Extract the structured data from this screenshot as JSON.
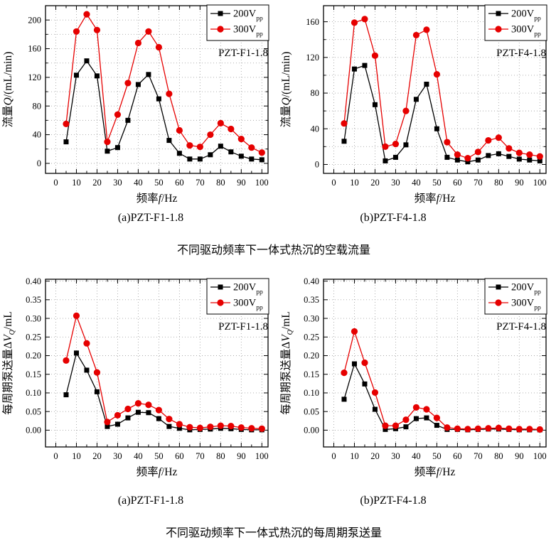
{
  "page": {
    "background": "#ffffff"
  },
  "colors": {
    "series_200v": "#000000",
    "series_300v": "#e60000",
    "grid": "#a6a6a6",
    "axis": "#000000",
    "legend_bg": "#ffffff"
  },
  "captions": {
    "flow_a": "(a)PZT-F1-1.8",
    "flow_b": "(b)PZT-F4-1.8",
    "flow_title": "不同驱动频率下一体式热沉的空载流量",
    "pump_a": "(a)PZT-F1-1.8",
    "pump_b": "(b)PZT-F4-1.8",
    "pump_title": "不同驱动频率下一体式热沉的每周期泵送量"
  },
  "chart_data": [
    {
      "type": "line",
      "annotation": "PZT-F1-1.8",
      "xlabel": "频率f/Hz",
      "ylabel": "流量Q/(mL/min)",
      "xlabel_parts": [
        {
          "t": "频率"
        },
        {
          "t": "f",
          "i": true
        },
        {
          "t": "/Hz"
        }
      ],
      "ylabel_parts": [
        {
          "t": "流量"
        },
        {
          "t": "Q",
          "i": true
        },
        {
          "t": "/(mL/min)"
        }
      ],
      "x": [
        5,
        10,
        15,
        20,
        25,
        30,
        35,
        40,
        45,
        50,
        55,
        60,
        65,
        70,
        75,
        80,
        85,
        90,
        95,
        100
      ],
      "series": [
        {
          "name": "200Vpp",
          "legend_main": "200V",
          "legend_sub": "pp",
          "color": "#000000",
          "marker": "square",
          "values": [
            30,
            123,
            143,
            122,
            17,
            22,
            60,
            110,
            124,
            90,
            32,
            14,
            6,
            6,
            12,
            24,
            16,
            10,
            6,
            5
          ]
        },
        {
          "name": "300Vpp",
          "legend_main": "300V",
          "legend_sub": "pp",
          "color": "#e60000",
          "marker": "circle",
          "values": [
            55,
            184,
            208,
            186,
            30,
            68,
            112,
            168,
            184,
            162,
            97,
            46,
            25,
            23,
            40,
            56,
            48,
            34,
            22,
            15
          ]
        }
      ],
      "xlim": [
        -5,
        103
      ],
      "ylim": [
        -14,
        220
      ],
      "xticks": [
        0,
        10,
        20,
        30,
        40,
        50,
        60,
        70,
        80,
        90,
        100
      ],
      "xminor_step": 5,
      "yticks": [
        0,
        40,
        80,
        120,
        160,
        200
      ],
      "ytick_labels": [
        "0",
        "40",
        "80",
        "120",
        "160",
        "200"
      ],
      "ygrid_step": 20,
      "yminor_step": 20,
      "grid": true,
      "legend_position": "top-right"
    },
    {
      "type": "line",
      "annotation": "PZT-F4-1.8",
      "xlabel": "频率f/Hz",
      "ylabel": "流量Q/(mL/min)",
      "xlabel_parts": [
        {
          "t": "频率"
        },
        {
          "t": "f",
          "i": true
        },
        {
          "t": "/Hz"
        }
      ],
      "ylabel_parts": [
        {
          "t": "流量"
        },
        {
          "t": "Q",
          "i": true
        },
        {
          "t": "/(mL/min)"
        }
      ],
      "x": [
        5,
        10,
        15,
        20,
        25,
        30,
        35,
        40,
        45,
        50,
        55,
        60,
        65,
        70,
        75,
        80,
        85,
        90,
        95,
        100
      ],
      "series": [
        {
          "name": "200Vpp",
          "legend_main": "200V",
          "legend_sub": "pp",
          "color": "#000000",
          "marker": "square",
          "values": [
            26,
            107,
            111,
            67,
            4,
            8,
            22,
            73,
            90,
            40,
            8,
            5,
            3,
            5,
            10,
            12,
            9,
            6,
            5,
            4
          ]
        },
        {
          "name": "300Vpp",
          "legend_main": "300V",
          "legend_sub": "pp",
          "color": "#e60000",
          "marker": "circle",
          "values": [
            46,
            159,
            163,
            122,
            20,
            23,
            60,
            145,
            151,
            101,
            25,
            11,
            7,
            14,
            27,
            30,
            18,
            13,
            11,
            9
          ]
        }
      ],
      "xlim": [
        -5,
        103
      ],
      "ylim": [
        -10,
        178
      ],
      "xticks": [
        0,
        10,
        20,
        30,
        40,
        50,
        60,
        70,
        80,
        90,
        100
      ],
      "xminor_step": 5,
      "yticks": [
        0,
        40,
        80,
        120,
        160
      ],
      "ytick_labels": [
        "0",
        "40",
        "80",
        "120",
        "160"
      ],
      "ygrid_step": 20,
      "yminor_step": 20,
      "grid": true,
      "legend_position": "top-right"
    },
    {
      "type": "line",
      "annotation": "PZT-F1-1.8",
      "xlabel": "频率f/Hz",
      "ylabel": "每周期泵送量ΔVQ/mL",
      "xlabel_parts": [
        {
          "t": "频率"
        },
        {
          "t": "f",
          "i": true
        },
        {
          "t": "/Hz"
        }
      ],
      "ylabel_parts": [
        {
          "t": "每周期泵送量Δ"
        },
        {
          "t": "V",
          "i": true
        },
        {
          "t": "Q",
          "i": true,
          "sub": true
        },
        {
          "t": "/mL"
        }
      ],
      "x": [
        5,
        10,
        15,
        20,
        25,
        30,
        35,
        40,
        45,
        50,
        55,
        60,
        65,
        70,
        75,
        80,
        85,
        90,
        95,
        100
      ],
      "series": [
        {
          "name": "200Vpp",
          "legend_main": "200V",
          "legend_sub": "pp",
          "color": "#000000",
          "marker": "square",
          "values": [
            0.095,
            0.207,
            0.161,
            0.103,
            0.01,
            0.016,
            0.033,
            0.048,
            0.047,
            0.031,
            0.01,
            0.005,
            0.001,
            0.002,
            0.003,
            0.005,
            0.004,
            0.002,
            0.001,
            0.001
          ]
        },
        {
          "name": "300Vpp",
          "legend_main": "300V",
          "legend_sub": "pp",
          "color": "#e60000",
          "marker": "circle",
          "values": [
            0.187,
            0.307,
            0.233,
            0.155,
            0.022,
            0.04,
            0.057,
            0.072,
            0.068,
            0.054,
            0.03,
            0.016,
            0.008,
            0.006,
            0.009,
            0.012,
            0.011,
            0.007,
            0.005,
            0.004
          ]
        }
      ],
      "xlim": [
        -5,
        103
      ],
      "ylim": [
        -0.045,
        0.405
      ],
      "xticks": [
        0,
        10,
        20,
        30,
        40,
        50,
        60,
        70,
        80,
        90,
        100
      ],
      "xminor_step": 5,
      "yticks": [
        0,
        0.05,
        0.1,
        0.15,
        0.2,
        0.25,
        0.3,
        0.35,
        0.4
      ],
      "ytick_labels": [
        "0.00",
        "0.05",
        "0.10",
        "0.15",
        "0.20",
        "0.25",
        "0.30",
        "0.35",
        "0.40"
      ],
      "ygrid_step": 0.05,
      "yminor_step": null,
      "grid": true,
      "legend_position": "top-right"
    },
    {
      "type": "line",
      "annotation": "PZT-F4-1.8",
      "xlabel": "频率f/Hz",
      "ylabel": "每周期泵送量ΔVQ/mL",
      "xlabel_parts": [
        {
          "t": "频率"
        },
        {
          "t": "f",
          "i": true
        },
        {
          "t": "/Hz"
        }
      ],
      "ylabel_parts": [
        {
          "t": "每周期泵送量Δ"
        },
        {
          "t": "V",
          "i": true
        },
        {
          "t": "Q",
          "i": true,
          "sub": true
        },
        {
          "t": "/mL"
        }
      ],
      "x": [
        5,
        10,
        15,
        20,
        25,
        30,
        35,
        40,
        45,
        50,
        55,
        60,
        65,
        70,
        75,
        80,
        85,
        90,
        95,
        100
      ],
      "series": [
        {
          "name": "200Vpp",
          "legend_main": "200V",
          "legend_sub": "pp",
          "color": "#000000",
          "marker": "square",
          "values": [
            0.083,
            0.178,
            0.124,
            0.056,
            0.002,
            0.004,
            0.009,
            0.031,
            0.033,
            0.013,
            0.002,
            0.002,
            0.001,
            0.002,
            0.003,
            0.003,
            0.002,
            0.001,
            0.001,
            0.001
          ]
        },
        {
          "name": "300Vpp",
          "legend_main": "300V",
          "legend_sub": "pp",
          "color": "#e60000",
          "marker": "circle",
          "values": [
            0.154,
            0.265,
            0.181,
            0.101,
            0.012,
            0.012,
            0.028,
            0.061,
            0.056,
            0.033,
            0.007,
            0.004,
            0.003,
            0.004,
            0.005,
            0.006,
            0.004,
            0.003,
            0.003,
            0.002
          ]
        }
      ],
      "xlim": [
        -5,
        103
      ],
      "ylim": [
        -0.045,
        0.405
      ],
      "xticks": [
        0,
        10,
        20,
        30,
        40,
        50,
        60,
        70,
        80,
        90,
        100
      ],
      "xminor_step": 5,
      "yticks": [
        0,
        0.05,
        0.1,
        0.15,
        0.2,
        0.25,
        0.3,
        0.35,
        0.4
      ],
      "ytick_labels": [
        "0.00",
        "0.05",
        "0.10",
        "0.15",
        "0.20",
        "0.25",
        "0.30",
        "0.35",
        "0.40"
      ],
      "ygrid_step": 0.05,
      "yminor_step": null,
      "grid": true,
      "legend_position": "top-right"
    }
  ]
}
